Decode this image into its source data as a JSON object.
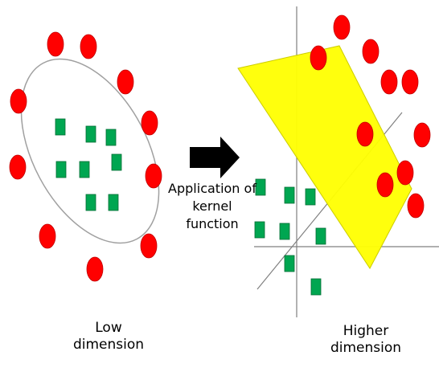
{
  "diagram": {
    "low_label": [
      "Low",
      "dimension"
    ],
    "high_label": [
      "Higher",
      "dimension"
    ],
    "kernel_label": [
      "Application of",
      "kernel",
      "function"
    ],
    "colors": {
      "circle_fill": "#ff0000",
      "square_fill": "#00a651",
      "plane_fill": "#ffff00",
      "arrow_fill": "#000000",
      "ellipse_stroke": "#a0a0a0",
      "axis_stroke": "#808080"
    }
  }
}
